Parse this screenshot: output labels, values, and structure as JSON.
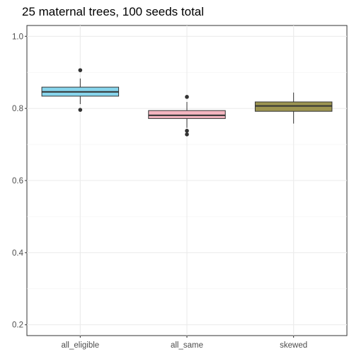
{
  "chart_data": {
    "type": "boxplot",
    "title": "25 maternal trees, 100 seeds total",
    "xlabel": "",
    "ylabel": "",
    "ylim": [
      0.17,
      1.03
    ],
    "yticks": [
      0.2,
      0.4,
      0.6,
      0.8,
      1.0
    ],
    "ytick_labels": [
      "0.2",
      "0.4",
      "0.6",
      "0.8",
      "1.0"
    ],
    "grid": true,
    "categories": [
      "all_eligible",
      "all_same",
      "skewed"
    ],
    "boxes": [
      {
        "category": "all_eligible",
        "color": "#87d5ec",
        "whisker_low": 0.812,
        "q1": 0.834,
        "median": 0.846,
        "q3": 0.859,
        "whisker_high": 0.883,
        "outliers": [
          0.906,
          0.796
        ]
      },
      {
        "category": "all_same",
        "color": "#f4b5c0",
        "whisker_low": 0.746,
        "q1": 0.772,
        "median": 0.781,
        "q3": 0.794,
        "whisker_high": 0.818,
        "outliers": [
          0.832,
          0.738,
          0.728
        ]
      },
      {
        "category": "skewed",
        "color": "#9c9450",
        "whisker_low": 0.758,
        "q1": 0.792,
        "median": 0.807,
        "q3": 0.818,
        "whisker_high": 0.844,
        "outliers": []
      }
    ]
  }
}
